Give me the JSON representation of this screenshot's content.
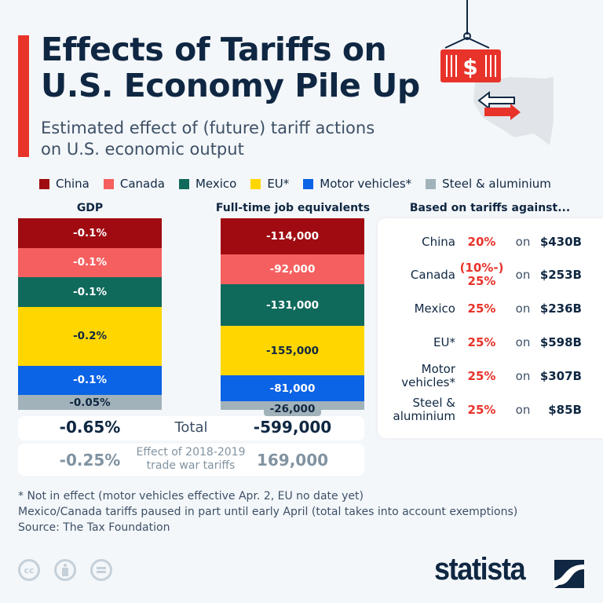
{
  "title": "Effects of Tariffs on U.S. Economy Pile Up",
  "title_line1": "Effects of Tariffs on",
  "title_line2": "U.S. Economy Pile Up",
  "subtitle_line1": "Estimated effect of (future) tariff actions",
  "subtitle_line2": "on U.S. economic output",
  "chart_data": {
    "type": "stacked-bar",
    "categories": [
      "GDP",
      "Full-time job equivalents"
    ],
    "series": [
      {
        "name": "China",
        "color": "#a00b12",
        "gdp": -0.1,
        "gdp_label": "-0.1%",
        "jobs": -114000,
        "jobs_label": "-114,000"
      },
      {
        "name": "Canada",
        "color": "#f65f5f",
        "gdp": -0.1,
        "gdp_label": "-0.1%",
        "jobs": -92000,
        "jobs_label": "-92,000"
      },
      {
        "name": "Mexico",
        "color": "#106a5c",
        "gdp": -0.1,
        "gdp_label": "-0.1%",
        "jobs": -131000,
        "jobs_label": "-131,000"
      },
      {
        "name": "EU*",
        "color": "#ffd600",
        "gdp": -0.2,
        "gdp_label": "-0.2%",
        "jobs": -155000,
        "jobs_label": "-155,000"
      },
      {
        "name": "Motor vehicles*",
        "color": "#0b63e5",
        "gdp": -0.1,
        "gdp_label": "-0.1%",
        "jobs": -81000,
        "jobs_label": "-81,000"
      },
      {
        "name": "Steel & aluminium",
        "color": "#a1b2ba",
        "gdp": -0.05,
        "gdp_label": "-0.05%",
        "jobs": -26000,
        "jobs_label": "-26,000"
      }
    ],
    "legend_placement": "top",
    "total": {
      "label": "Total",
      "gdp": "-0.65%",
      "jobs": "-599,000"
    },
    "trade_war": {
      "label_line1": "Effect of 2018-2019",
      "label_line2": "trade war tariffs",
      "gdp": "-0.25%",
      "jobs": "169,000"
    }
  },
  "tariffs": {
    "heading": "Based on tariffs against...",
    "on": "on",
    "rows": [
      {
        "country": "China",
        "rate": "20%",
        "value": "$430B"
      },
      {
        "country": "Canada",
        "rate": "(10%-) 25%",
        "value": "$253B"
      },
      {
        "country": "Mexico",
        "rate": "25%",
        "value": "$236B"
      },
      {
        "country": "EU*",
        "rate": "25%",
        "value": "$598B"
      },
      {
        "country": "Motor vehicles*",
        "rate": "25%",
        "value": "$307B"
      },
      {
        "country": "Steel & aluminium",
        "rate": "25%",
        "value": "$85B"
      }
    ]
  },
  "notes": {
    "line1": "* Not in effect (motor vehicles effective Apr. 2, EU no date yet)",
    "line2": "Mexico/Canada tariffs paused in part until early April (total takes into account exemptions)",
    "source": "Source: The Tax Foundation"
  },
  "footer": {
    "cc": "cc",
    "logo": "statista"
  },
  "colors": {
    "accent": "#e8332a",
    "navy": "#0f2742"
  }
}
